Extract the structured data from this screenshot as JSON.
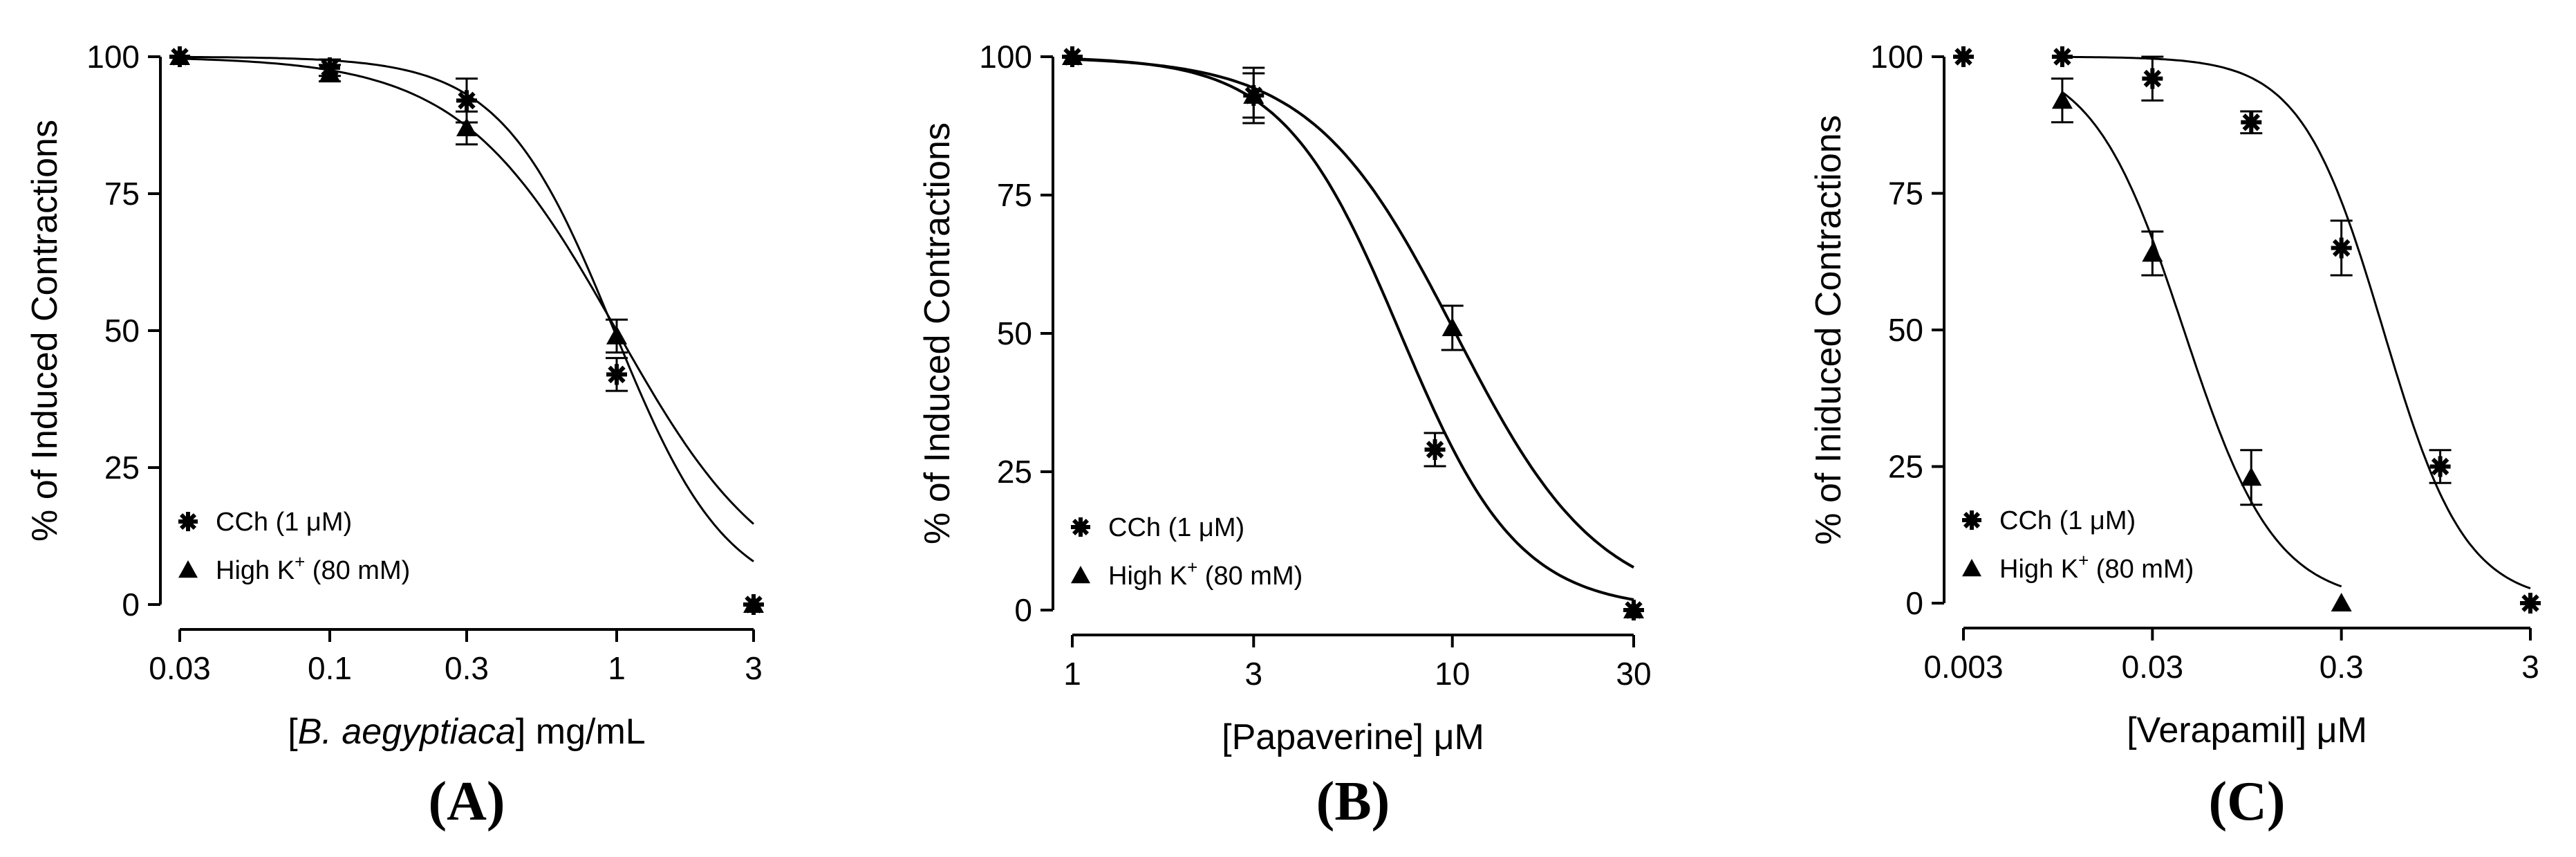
{
  "chart_data": [
    {
      "type": "line",
      "panel_label": "(A)",
      "xscale": "log",
      "xlabel_parts": [
        "[",
        "B. aegyptiaca",
        "] mg/mL"
      ],
      "ylabel": "% of Induced Contractions",
      "xlim": [
        0.03,
        3
      ],
      "ylim": [
        0,
        100
      ],
      "xticks": [
        0.03,
        0.1,
        0.3,
        1,
        3
      ],
      "xtick_labels": [
        "0.03",
        "0.1",
        "0.3",
        "1",
        "3"
      ],
      "yticks": [
        0,
        25,
        50,
        75,
        100
      ],
      "ytick_labels": [
        "0",
        "25",
        "50",
        "75",
        "100"
      ],
      "legend_position": "bottom-left",
      "series": [
        {
          "name": "CCh (1 μM)",
          "label_main": "CCh (1 ",
          "label_unit": "μM)",
          "marker": "star",
          "x": [
            0.03,
            0.1,
            0.3,
            1,
            3
          ],
          "y": [
            100,
            98,
            92,
            42,
            0
          ],
          "err": [
            0,
            1.5,
            4,
            3,
            0
          ],
          "ic50": 0.98,
          "hill": 2.2
        },
        {
          "name": "High K+ (80 mM)",
          "label_main": "High K",
          "label_sup": "+",
          "label_unit": " (80 mM)",
          "marker": "triangle",
          "x": [
            0.03,
            0.1,
            0.3,
            1,
            3
          ],
          "y": [
            100,
            97,
            87,
            49,
            0
          ],
          "err": [
            0,
            1.5,
            3,
            3,
            0
          ],
          "ic50": 1.0,
          "hill": 1.6
        }
      ]
    },
    {
      "type": "line",
      "panel_label": "(B)",
      "xscale": "log",
      "xlabel_parts": [
        "[Papaverine] ",
        "",
        "μM"
      ],
      "ylabel": "% of Induced Contractions",
      "xlim": [
        1,
        30
      ],
      "ylim": [
        0,
        100
      ],
      "xticks": [
        1,
        3,
        10,
        30
      ],
      "xtick_labels": [
        "1",
        "3",
        "10",
        "30"
      ],
      "yticks": [
        0,
        25,
        50,
        75,
        100
      ],
      "ytick_labels": [
        "0",
        "25",
        "50",
        "75",
        "100"
      ],
      "legend_position": "bottom-left",
      "series": [
        {
          "name": "CCh (1 μM)",
          "label_main": "CCh (1 ",
          "label_unit": "μM)",
          "marker": "star",
          "x": [
            1,
            3,
            9,
            30
          ],
          "y": [
            100,
            93,
            29,
            0
          ],
          "err": [
            0,
            4,
            3,
            0
          ],
          "ic50": 7.3,
          "hill": 2.8
        },
        {
          "name": "High K+ (80 mM)",
          "label_main": "High K",
          "label_sup": "+",
          "label_unit": " (80 mM)",
          "marker": "triangle",
          "x": [
            1,
            3,
            10,
            30
          ],
          "y": [
            100,
            93,
            51,
            0
          ],
          "err": [
            0,
            5,
            4,
            0
          ],
          "ic50": 10.2,
          "hill": 2.3
        }
      ]
    },
    {
      "type": "line",
      "panel_label": "(C)",
      "xscale": "log",
      "xlabel_parts": [
        "[Verapamil] ",
        "",
        "μM"
      ],
      "ylabel": "% of Iniduced Contractions",
      "xlim": [
        0.003,
        3
      ],
      "ylim": [
        0,
        100
      ],
      "xticks": [
        0.003,
        0.03,
        0.3,
        3
      ],
      "xtick_labels": [
        "0.003",
        "0.03",
        "0.3",
        "3"
      ],
      "yticks": [
        0,
        25,
        50,
        75,
        100
      ],
      "ytick_labels": [
        "0",
        "25",
        "50",
        "75",
        "100"
      ],
      "legend_position": "bottom-left",
      "series": [
        {
          "name": "CCh (1 μM)",
          "label_main": "CCh (1 ",
          "label_unit": "μM)",
          "marker": "star",
          "x": [
            0.003,
            0.01,
            0.03,
            0.1,
            0.3,
            1,
            3
          ],
          "y": [
            100,
            100,
            96,
            88,
            65,
            25,
            0
          ],
          "err": [
            0,
            0,
            4,
            2,
            5,
            3,
            0
          ],
          "ic50": 0.5,
          "hill": 2.0,
          "fit_start": 0.01
        },
        {
          "name": "High K+ (80 mM)",
          "label_main": "High K",
          "label_sup": "+",
          "label_unit": " (80 mM)",
          "marker": "triangle",
          "x": [
            0.01,
            0.03,
            0.1,
            0.3
          ],
          "y": [
            92,
            64,
            23,
            0
          ],
          "err": [
            4,
            4,
            5,
            0
          ],
          "ic50": 0.044,
          "hill": 1.8,
          "fit_start": 0.01,
          "fit_end": 0.3
        }
      ]
    }
  ]
}
